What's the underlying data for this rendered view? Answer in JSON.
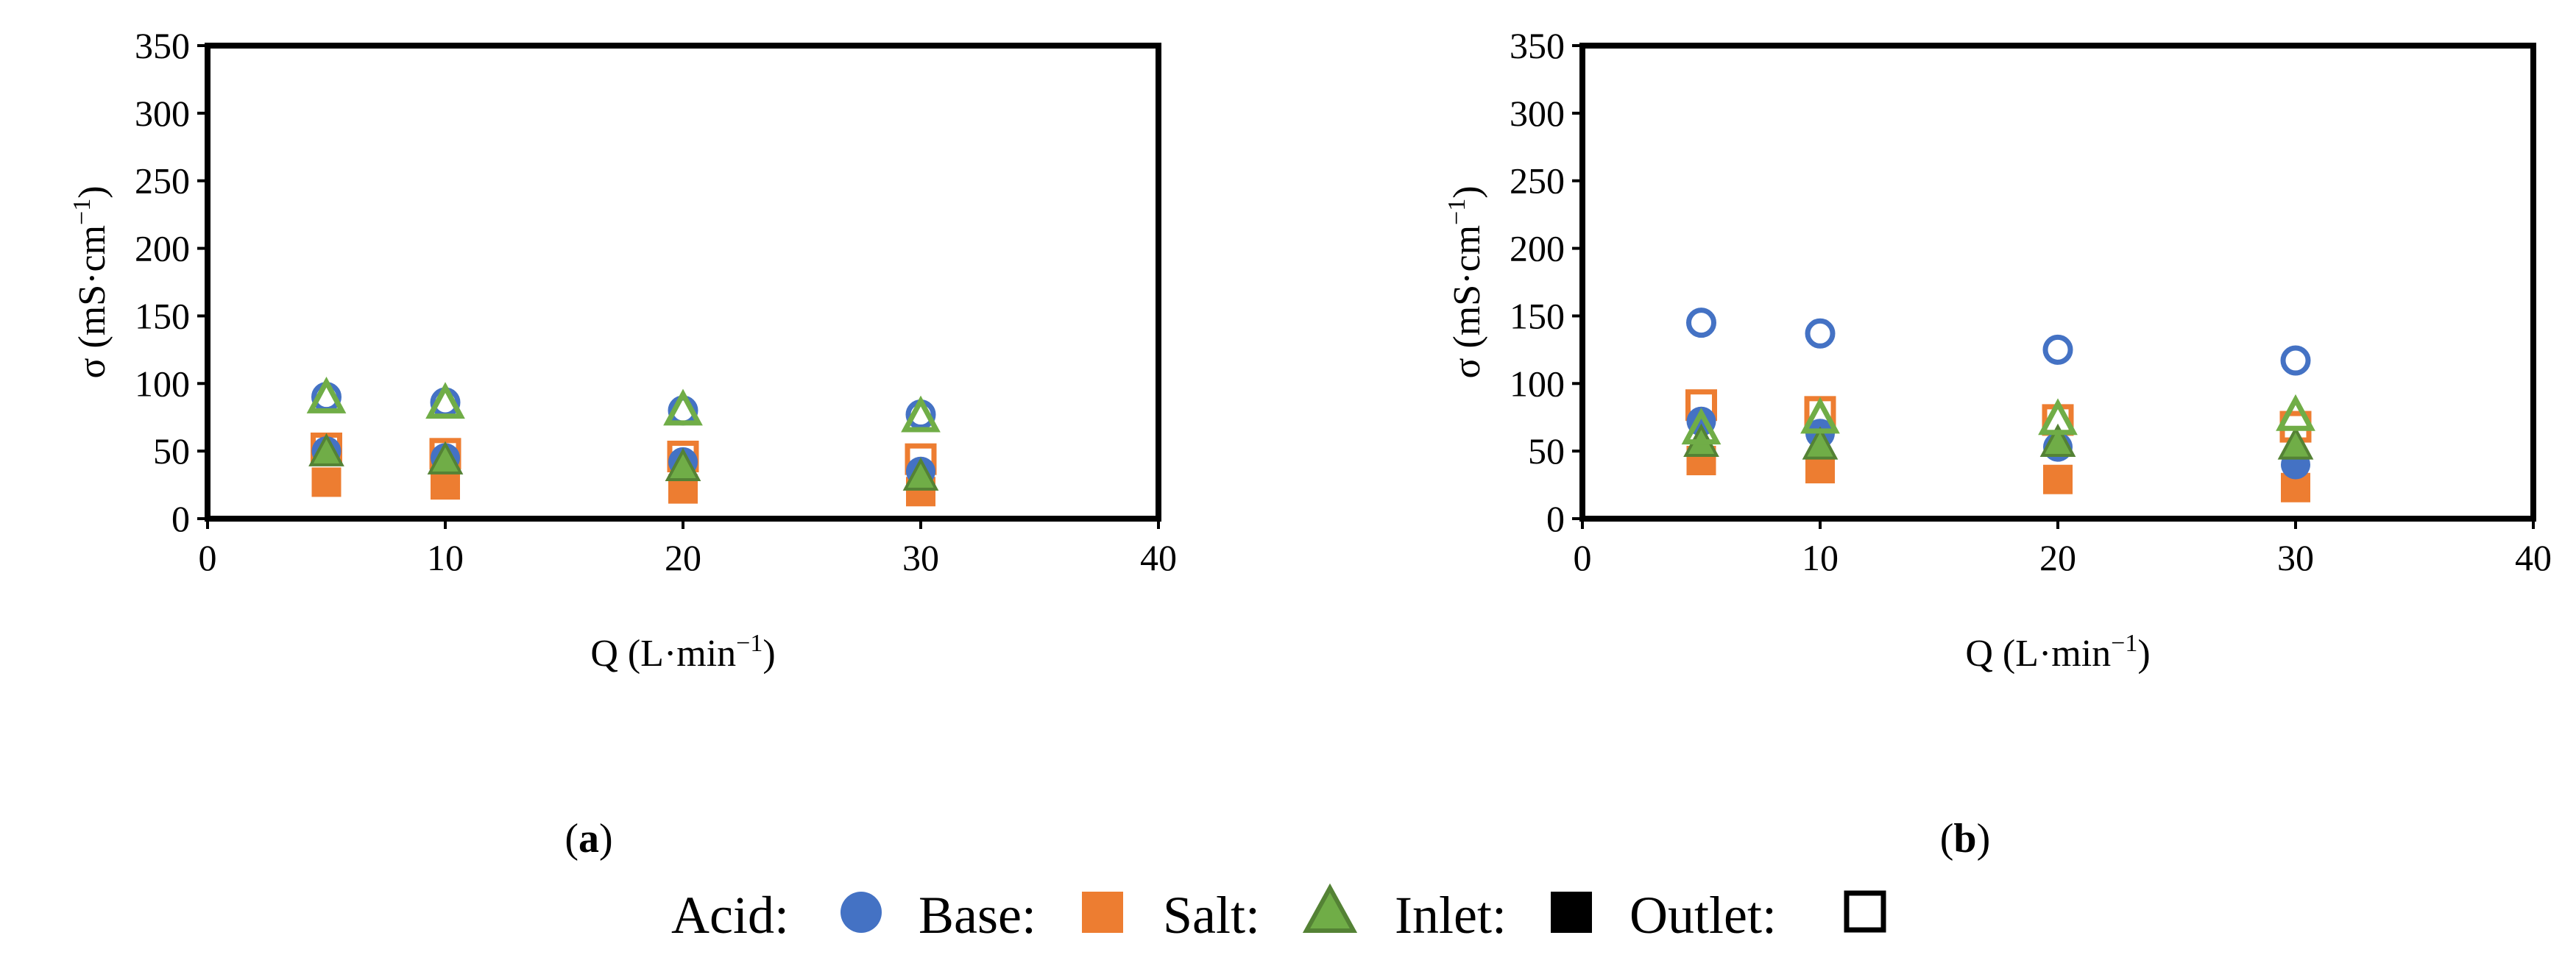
{
  "colors": {
    "acid": "#4472C4",
    "base": "#ED7D31",
    "salt": "#548235",
    "salt_fill": "#70AD47",
    "frame": "#000000"
  },
  "chart_data": [
    {
      "type": "scatter",
      "label": "(a)",
      "label_letter": "a",
      "xlabel": "Q (L·min",
      "xlabel_sup": "−1",
      "xlabel_tail": ")",
      "ylabel": "σ (mS·cm",
      "ylabel_sup": "−1",
      "ylabel_tail": ")",
      "xlim": [
        0,
        40
      ],
      "ylim": [
        0,
        350
      ],
      "xticks": [
        "0",
        "10",
        "20",
        "30",
        "40"
      ],
      "yticks": [
        "0",
        "50",
        "100",
        "150",
        "200",
        "250",
        "300",
        "350"
      ],
      "x": [
        5,
        10,
        20,
        30
      ],
      "series": [
        {
          "name": "Acid Inlet",
          "kind": "acid",
          "filled": true,
          "values": [
            50,
            45,
            42,
            35
          ]
        },
        {
          "name": "Acid Outlet",
          "kind": "acid",
          "filled": false,
          "values": [
            90,
            86,
            80,
            77
          ]
        },
        {
          "name": "Base Inlet",
          "kind": "base",
          "filled": true,
          "values": [
            27,
            25,
            22,
            20
          ]
        },
        {
          "name": "Base Outlet",
          "kind": "base",
          "filled": false,
          "values": [
            52,
            48,
            46,
            44
          ]
        },
        {
          "name": "Salt Inlet",
          "kind": "salt",
          "filled": true,
          "values": [
            48,
            42,
            37,
            30
          ]
        },
        {
          "name": "Salt Outlet",
          "kind": "salt",
          "filled": false,
          "values": [
            88,
            84,
            79,
            74
          ]
        }
      ]
    },
    {
      "type": "scatter",
      "label": "(b)",
      "label_letter": "b",
      "xlabel": "Q (L·min",
      "xlabel_sup": "−1",
      "xlabel_tail": ")",
      "ylabel": "σ (mS·cm",
      "ylabel_sup": "−1",
      "ylabel_tail": ")",
      "xlim": [
        0,
        40
      ],
      "ylim": [
        0,
        350
      ],
      "xticks": [
        "0",
        "10",
        "20",
        "30",
        "40"
      ],
      "yticks": [
        "0",
        "50",
        "100",
        "150",
        "200",
        "250",
        "300",
        "350"
      ],
      "x": [
        5,
        10,
        20,
        30
      ],
      "series": [
        {
          "name": "Acid Inlet",
          "kind": "acid",
          "filled": true,
          "values": [
            72,
            63,
            53,
            40
          ]
        },
        {
          "name": "Acid Outlet",
          "kind": "acid",
          "filled": false,
          "values": [
            145,
            137,
            125,
            117
          ]
        },
        {
          "name": "Base Inlet",
          "kind": "base",
          "filled": true,
          "values": [
            43,
            37,
            29,
            23
          ]
        },
        {
          "name": "Base Outlet",
          "kind": "base",
          "filled": false,
          "values": [
            84,
            79,
            73,
            68
          ]
        },
        {
          "name": "Salt Inlet",
          "kind": "salt",
          "filled": true,
          "values": [
            55,
            53,
            55,
            53
          ]
        },
        {
          "name": "Salt Outlet",
          "kind": "salt",
          "filled": false,
          "values": [
            65,
            73,
            72,
            75
          ]
        }
      ]
    }
  ],
  "legend": {
    "acid_label": "Acid:",
    "base_label": "Base:",
    "salt_label": "Salt:",
    "inlet_label": "Inlet:",
    "outlet_label": "Outlet:"
  }
}
